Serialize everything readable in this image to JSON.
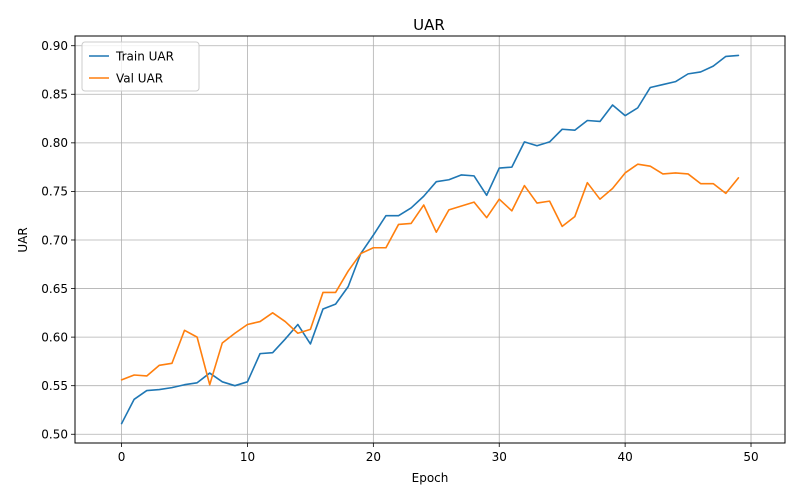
{
  "chart_data": {
    "type": "line",
    "title": "UAR",
    "xlabel": "Epoch",
    "ylabel": "UAR",
    "xlim": [
      -3.7,
      52.7
    ],
    "ylim": [
      0.491,
      0.91
    ],
    "x_ticks": [
      0,
      10,
      20,
      30,
      40,
      50
    ],
    "y_ticks": [
      0.5,
      0.55,
      0.6,
      0.65,
      0.7,
      0.75,
      0.8,
      0.85,
      0.9
    ],
    "x_tick_labels": [
      "0",
      "10",
      "20",
      "30",
      "40",
      "50"
    ],
    "y_tick_labels": [
      "0.50",
      "0.55",
      "0.60",
      "0.65",
      "0.70",
      "0.75",
      "0.80",
      "0.85",
      "0.90"
    ],
    "grid": true,
    "legend_position": "upper-left",
    "x": [
      0,
      1,
      2,
      3,
      4,
      5,
      6,
      7,
      8,
      9,
      10,
      11,
      12,
      13,
      14,
      15,
      16,
      17,
      18,
      19,
      20,
      21,
      22,
      23,
      24,
      25,
      26,
      27,
      28,
      29,
      30,
      31,
      32,
      33,
      34,
      35,
      36,
      37,
      38,
      39,
      40,
      41,
      42,
      43,
      44,
      45,
      46,
      47,
      48,
      49
    ],
    "series": [
      {
        "name": "Train UAR",
        "color": "#1f77b4",
        "values": [
          0.511,
          0.536,
          0.545,
          0.546,
          0.548,
          0.551,
          0.553,
          0.563,
          0.554,
          0.55,
          0.554,
          0.583,
          0.584,
          0.598,
          0.613,
          0.593,
          0.629,
          0.634,
          0.652,
          0.686,
          0.705,
          0.725,
          0.725,
          0.733,
          0.745,
          0.76,
          0.762,
          0.767,
          0.766,
          0.746,
          0.774,
          0.775,
          0.801,
          0.797,
          0.801,
          0.814,
          0.813,
          0.823,
          0.822,
          0.839,
          0.828,
          0.836,
          0.857,
          0.86,
          0.863,
          0.871,
          0.873,
          0.879,
          0.889,
          0.89
        ]
      },
      {
        "name": "Val UAR",
        "color": "#ff7f0e",
        "values": [
          0.556,
          0.561,
          0.56,
          0.571,
          0.573,
          0.607,
          0.6,
          0.551,
          0.594,
          0.604,
          0.613,
          0.616,
          0.625,
          0.616,
          0.604,
          0.608,
          0.646,
          0.646,
          0.668,
          0.686,
          0.692,
          0.692,
          0.716,
          0.717,
          0.736,
          0.708,
          0.731,
          0.735,
          0.739,
          0.723,
          0.742,
          0.73,
          0.756,
          0.738,
          0.74,
          0.714,
          0.724,
          0.759,
          0.742,
          0.753,
          0.769,
          0.778,
          0.776,
          0.768,
          0.769,
          0.768,
          0.758,
          0.758,
          0.748,
          0.764
        ]
      }
    ]
  }
}
